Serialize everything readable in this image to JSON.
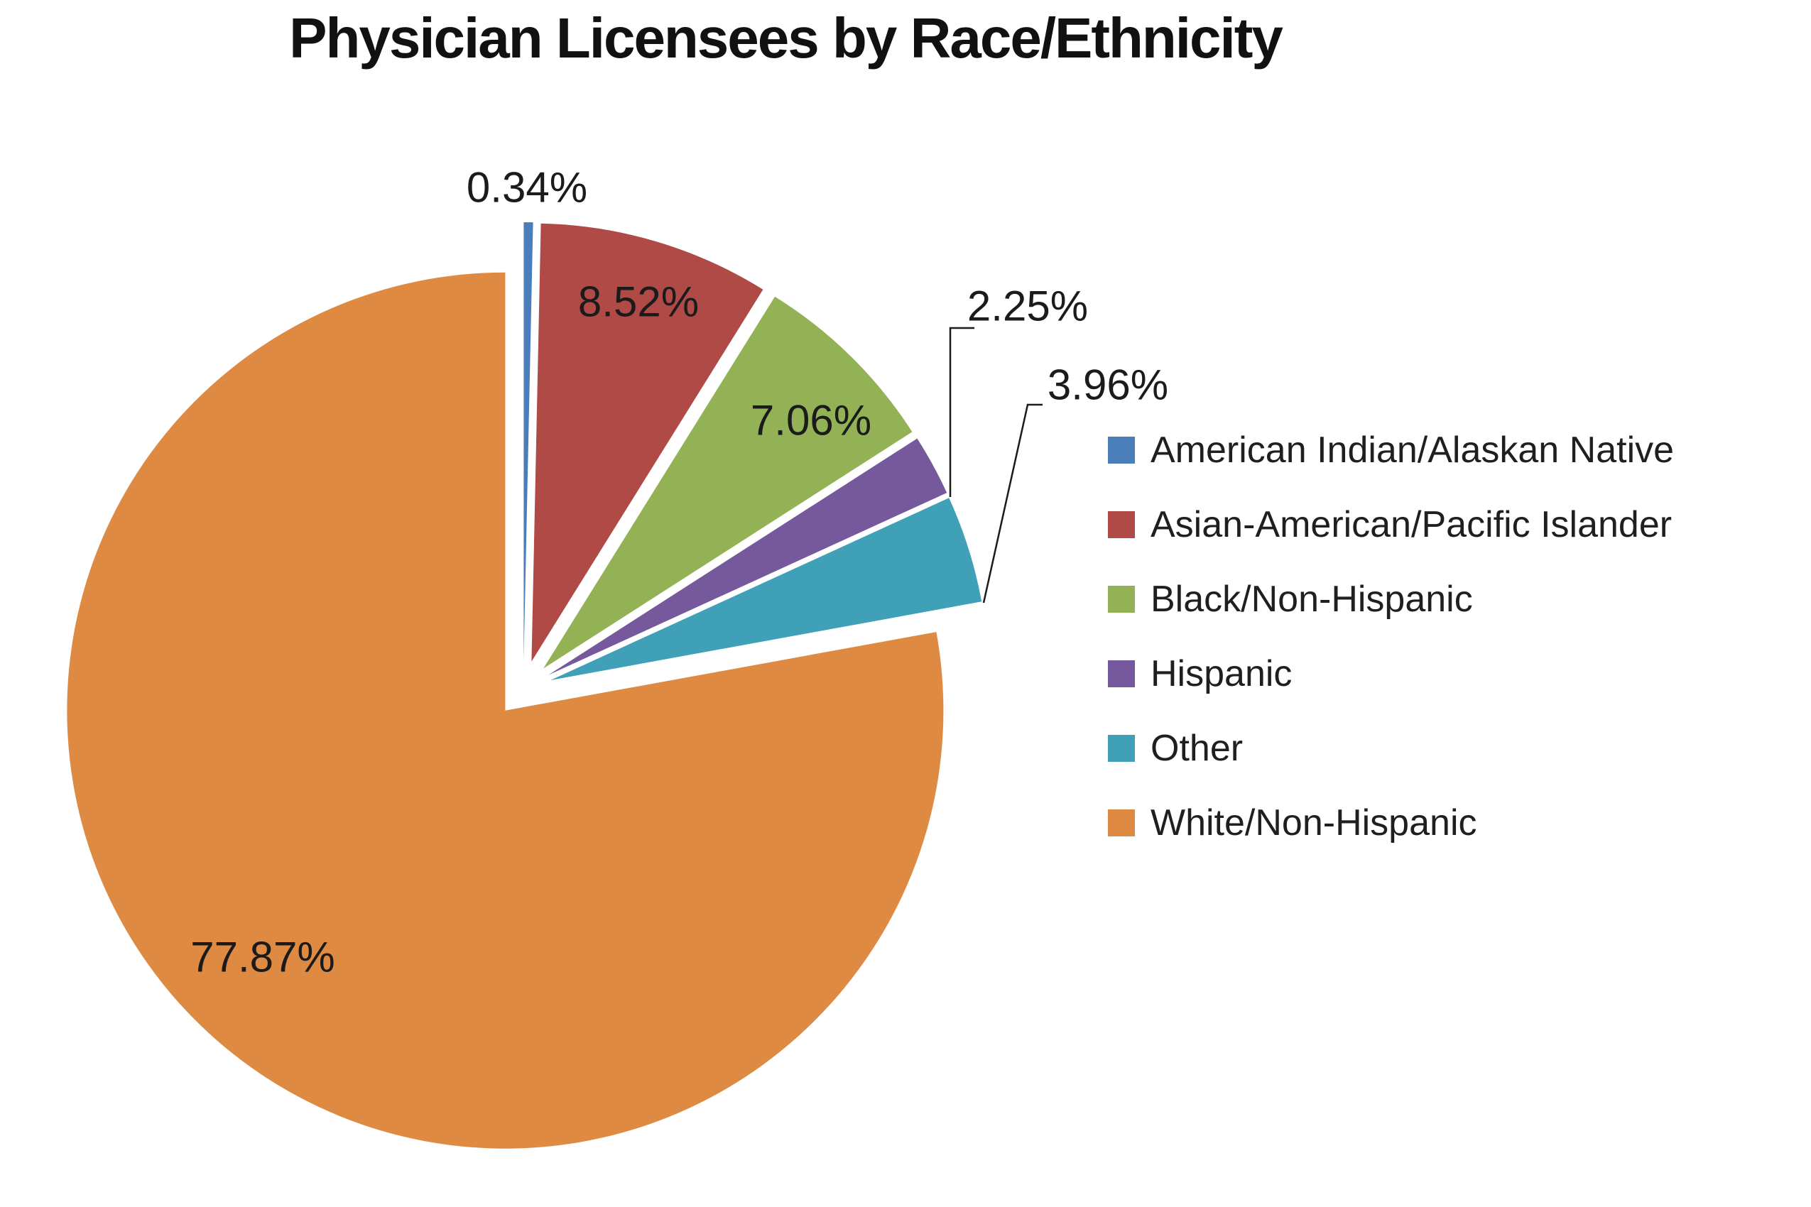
{
  "title": "Physician Licensees by Race/Ethnicity",
  "chart_data": {
    "type": "pie",
    "title": "Physician Licensees by Race/Ethnicity",
    "categories": [
      "American Indian/Alaskan Native",
      "Asian-American/Pacific Islander",
      "Black/Non-Hispanic",
      "Hispanic",
      "Other",
      "White/Non-Hispanic"
    ],
    "values": [
      0.34,
      8.52,
      7.06,
      2.25,
      3.96,
      77.87
    ],
    "labels": [
      "0.34%",
      "8.52%",
      "7.06%",
      "2.25%",
      "3.96%",
      "77.87%"
    ],
    "colors": [
      "#4A7EBA",
      "#AF4A46",
      "#93B155",
      "#75599C",
      "#3FA0B8",
      "#DE8A43"
    ],
    "exploded": true,
    "start_angle_deg_from_top": 0,
    "direction": "clockwise",
    "grid": false,
    "legend_position": "right",
    "label_color": "#1b1b1b",
    "leader_line_color": "#1b1b1b"
  },
  "legend": {
    "items": [
      {
        "label": "American Indian/Alaskan Native",
        "color": "#4A7EBA"
      },
      {
        "label": "Asian-American/Pacific Islander",
        "color": "#AF4A46"
      },
      {
        "label": "Black/Non-Hispanic",
        "color": "#93B155"
      },
      {
        "label": "Hispanic",
        "color": "#75599C"
      },
      {
        "label": "Other",
        "color": "#3FA0B8"
      },
      {
        "label": "White/Non-Hispanic",
        "color": "#DE8A43"
      }
    ]
  }
}
